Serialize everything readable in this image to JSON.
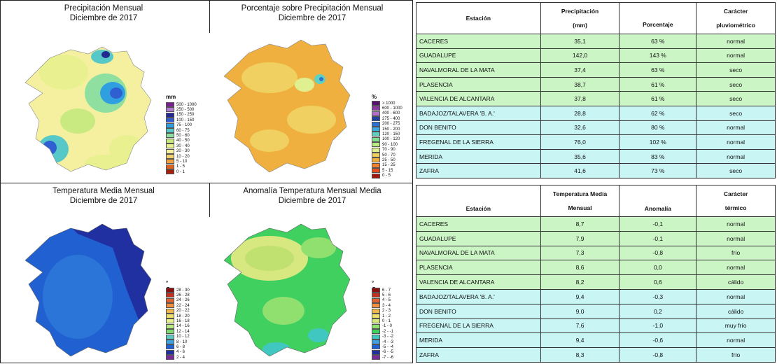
{
  "maps": [
    {
      "title1": "Precipitación Mensual",
      "title2": "Diciembre de 2017",
      "unit": "mm",
      "legend": [
        "500 - 1000",
        "250 - 500",
        "150 - 250",
        "100 - 150",
        "75 - 100",
        "60 - 75",
        "50 - 60",
        "40 - 50",
        "30 - 40",
        "20 - 30",
        "10 - 20",
        "5 - 10",
        "1 - 5",
        "0 - 1"
      ],
      "colors": [
        "#7a1f8f",
        "#b07ad0",
        "#222a8f",
        "#2f5fd0",
        "#2f9fe0",
        "#57c8c8",
        "#8fe0a0",
        "#c8ea80",
        "#e8f090",
        "#f4f0a0",
        "#f0d070",
        "#f0a040",
        "#e06020",
        "#a02010"
      ]
    },
    {
      "title1": "Porcentaje sobre Precipitación Mensual",
      "title2": "Diciembre de 2017",
      "unit": "%",
      "legend": [
        "> 1000",
        "600 - 1000",
        "400 - 600",
        "275 - 400",
        "200 - 275",
        "150 - 200",
        "120 - 150",
        "100 - 120",
        "90 - 100",
        "70 - 90",
        "50 - 70",
        "25 - 50",
        "15 - 25",
        "5 - 15",
        "0 - 5"
      ],
      "colors": [
        "#5a1070",
        "#8a3aa0",
        "#b070c8",
        "#2040a0",
        "#3070d0",
        "#40a8e0",
        "#60d0c0",
        "#80e090",
        "#b8ec80",
        "#e0f090",
        "#f0d060",
        "#f0b040",
        "#f08030",
        "#e05020",
        "#a01810"
      ]
    },
    {
      "title1": "Temperatura Media Mensual",
      "title2": "Diciembre de 2017",
      "unit": "° C",
      "legend": [
        "28 - 30",
        "26 - 28",
        "24 - 26",
        "22 - 24",
        "20 - 22",
        "18 - 20",
        "16 - 18",
        "14 - 16",
        "12 - 14",
        "10 - 12",
        "8 - 10",
        "6 - 8",
        "4 - 6",
        "2 - 4"
      ],
      "colors": [
        "#8a1010",
        "#c03020",
        "#e06030",
        "#f09040",
        "#f0b850",
        "#f0e070",
        "#e8f090",
        "#b8e880",
        "#80d870",
        "#60c8c0",
        "#40a0e0",
        "#2060d0",
        "#2030a0",
        "#7a2a9a"
      ]
    },
    {
      "title1": "Anomalía Temperatura Mensual Media",
      "title2": "Diciembre de 2017",
      "unit": "° C",
      "legend": [
        "6 - 7",
        "5 - 6",
        "4 - 5",
        "3 - 4",
        "2 - 3",
        "1 - 2",
        "0 - 1",
        "-1 - 0",
        "-2 - -1",
        "-3 - -2",
        "-4 - -3",
        "-5 - -4",
        "-6 - -5",
        "-7 - -6"
      ],
      "colors": [
        "#8a1010",
        "#c03020",
        "#e06030",
        "#f09040",
        "#f0b850",
        "#f0e070",
        "#d8e880",
        "#90e070",
        "#40d060",
        "#40c8c0",
        "#40a0e0",
        "#2060d0",
        "#2030a0",
        "#7a2a9a"
      ]
    }
  ],
  "precip_table": {
    "headers": [
      "Estación",
      "Precipitación",
      "(mm)",
      "Porcentaje",
      "Carácter",
      "pluviométrico"
    ],
    "rows": [
      {
        "station": "CACERES",
        "value": "35,1",
        "pct": "63 %",
        "char": "normal",
        "tone": "g"
      },
      {
        "station": "GUADALUPE",
        "value": "142,0",
        "pct": "143 %",
        "char": "normal",
        "tone": "g"
      },
      {
        "station": "NAVALMORAL DE LA MATA",
        "value": "37,4",
        "pct": "63 %",
        "char": "seco",
        "tone": "g"
      },
      {
        "station": "PLASENCIA",
        "value": "38,7",
        "pct": "61 %",
        "char": "seco",
        "tone": "g"
      },
      {
        "station": "VALENCIA DE ALCANTARA",
        "value": "37,8",
        "pct": "61 %",
        "char": "seco",
        "tone": "g"
      },
      {
        "station": "BADAJOZ/TALAVERA 'B. A.'",
        "value": "28,8",
        "pct": "62 %",
        "char": "seco",
        "tone": "c"
      },
      {
        "station": "DON BENITO",
        "value": "32,6",
        "pct": "80 %",
        "char": "normal",
        "tone": "c"
      },
      {
        "station": "FREGENAL DE LA SIERRA",
        "value": "76,0",
        "pct": "102 %",
        "char": "normal",
        "tone": "c"
      },
      {
        "station": "MERIDA",
        "value": "35,6",
        "pct": "83 %",
        "char": "normal",
        "tone": "c"
      },
      {
        "station": "ZAFRA",
        "value": "41,6",
        "pct": "73 %",
        "char": "seco",
        "tone": "c"
      }
    ]
  },
  "temp_table": {
    "headers": [
      "Estación",
      "Temperatura Media",
      "Mensual",
      "Anomalía",
      "Carácter",
      "térmico"
    ],
    "rows": [
      {
        "station": "CACERES",
        "value": "8,7",
        "anom": "-0,1",
        "char": "normal",
        "tone": "g"
      },
      {
        "station": "GUADALUPE",
        "value": "7,9",
        "anom": "-0,1",
        "char": "normal",
        "tone": "g"
      },
      {
        "station": "NAVALMORAL DE LA MATA",
        "value": "7,3",
        "anom": "-0,8",
        "char": "frío",
        "tone": "g"
      },
      {
        "station": "PLASENCIA",
        "value": "8,6",
        "anom": "0,0",
        "char": "normal",
        "tone": "g"
      },
      {
        "station": "VALENCIA DE ALCANTARA",
        "value": "8,2",
        "anom": "0,6",
        "char": "cálido",
        "tone": "g"
      },
      {
        "station": "BADAJOZ/TALAVERA 'B. A.'",
        "value": "9,4",
        "anom": "-0,3",
        "char": "normal",
        "tone": "c"
      },
      {
        "station": "DON BENITO",
        "value": "9,0",
        "anom": "0,2",
        "char": "cálido",
        "tone": "c"
      },
      {
        "station": "FREGENAL DE LA SIERRA",
        "value": "7,6",
        "anom": "-1,0",
        "char": "muy frío",
        "tone": "c"
      },
      {
        "station": "MERIDA",
        "value": "9,4",
        "anom": "-0,6",
        "char": "normal",
        "tone": "c"
      },
      {
        "station": "ZAFRA",
        "value": "8,3",
        "anom": "-0,8",
        "char": "frío",
        "tone": "c"
      }
    ]
  }
}
